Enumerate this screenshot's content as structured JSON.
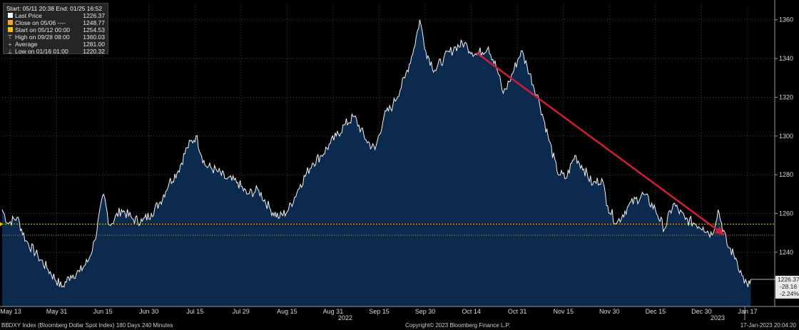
{
  "legend": {
    "header": "Start: 05/11 20:38 End: 01/25 16:52",
    "rows": [
      {
        "label": "Last Price",
        "value": "1226.37",
        "color": "#ffffff",
        "icon": "white-square-icon"
      },
      {
        "label": "Close on 05/06 ----",
        "value": "1248.77",
        "color": "#f5a623",
        "icon": "orange-square-icon"
      },
      {
        "label": "Start on 05/12 00:00",
        "value": "1254.53",
        "color": "#f5c000",
        "icon": "yellow-square-icon"
      },
      {
        "label": "High on 09/28 08:00",
        "value": "1360.03",
        "color": "#cccccc",
        "icon": "high-marker-icon",
        "symbol": "⊤"
      },
      {
        "label": "Average",
        "value": "1281.00",
        "color": "#cccccc",
        "icon": "average-marker-icon",
        "symbol": "+"
      },
      {
        "label": "Low on 01/16 01:00",
        "value": "1220.32",
        "color": "#cccccc",
        "icon": "low-marker-icon",
        "symbol": "⊥"
      }
    ]
  },
  "value_box": {
    "last": "1226.37",
    "change": "-28.16",
    "pct": "-2.24%"
  },
  "footer": {
    "left": "BBDXY Index (Bloomberg Dollar Spot Index) 180 Days 240 Minutes",
    "center": "Copyright© 2023 Bloomberg Finance L.P.",
    "right": "17-Jan-2023 20:04:20"
  },
  "colors": {
    "area": "#0c2a4e",
    "line": "#f2f2f2",
    "trend": "#d21e35",
    "start_line": "#f5c000",
    "close_line": "#f5a623"
  },
  "chart_data": {
    "type": "area",
    "y_ticks": [
      1240,
      1260,
      1280,
      1300,
      1320,
      1340,
      1360
    ],
    "ylim": [
      1212,
      1368
    ],
    "x_tick_labels": [
      "May 13",
      "May 31",
      "Jun 15",
      "Jun 30",
      "Jul 15",
      "Jul 29",
      "Aug 15",
      "Aug 31",
      "Sep 15",
      "Sep 30",
      "Oct 14",
      "Oct 31",
      "Nov 15",
      "Nov 30",
      "Dec 15",
      "Dec 30",
      "Jan 17"
    ],
    "x_year_labels": [
      "2022",
      "2023"
    ],
    "x_start": "2022-05-11",
    "x_end": "2023-01-25",
    "series": [
      {
        "name": "Last Price",
        "points": [
          [
            "2022-05-11",
            1262
          ],
          [
            "2022-05-13",
            1255
          ],
          [
            "2022-05-16",
            1258
          ],
          [
            "2022-05-19",
            1246
          ],
          [
            "2022-05-23",
            1238
          ],
          [
            "2022-05-26",
            1232
          ],
          [
            "2022-05-31",
            1222
          ],
          [
            "2022-06-03",
            1228
          ],
          [
            "2022-06-06",
            1230
          ],
          [
            "2022-06-09",
            1236
          ],
          [
            "2022-06-11",
            1246
          ],
          [
            "2022-06-14",
            1270
          ],
          [
            "2022-06-16",
            1254
          ],
          [
            "2022-06-20",
            1262
          ],
          [
            "2022-06-24",
            1257
          ],
          [
            "2022-06-27",
            1256
          ],
          [
            "2022-06-30",
            1260
          ],
          [
            "2022-07-03",
            1266
          ],
          [
            "2022-07-06",
            1276
          ],
          [
            "2022-07-09",
            1282
          ],
          [
            "2022-07-12",
            1294
          ],
          [
            "2022-07-15",
            1300
          ],
          [
            "2022-07-18",
            1285
          ],
          [
            "2022-07-22",
            1282
          ],
          [
            "2022-07-25",
            1278
          ],
          [
            "2022-07-29",
            1276
          ],
          [
            "2022-08-01",
            1270
          ],
          [
            "2022-08-05",
            1272
          ],
          [
            "2022-08-09",
            1262
          ],
          [
            "2022-08-12",
            1258
          ],
          [
            "2022-08-15",
            1262
          ],
          [
            "2022-08-19",
            1275
          ],
          [
            "2022-08-23",
            1286
          ],
          [
            "2022-08-26",
            1290
          ],
          [
            "2022-08-29",
            1296
          ],
          [
            "2022-08-31",
            1300
          ],
          [
            "2022-09-03",
            1306
          ],
          [
            "2022-09-06",
            1310
          ],
          [
            "2022-09-10",
            1298
          ],
          [
            "2022-09-13",
            1293
          ],
          [
            "2022-09-16",
            1310
          ],
          [
            "2022-09-19",
            1316
          ],
          [
            "2022-09-23",
            1330
          ],
          [
            "2022-09-26",
            1345
          ],
          [
            "2022-09-28",
            1360
          ],
          [
            "2022-09-30",
            1344
          ],
          [
            "2022-10-03",
            1334
          ],
          [
            "2022-10-06",
            1340
          ],
          [
            "2022-10-10",
            1346
          ],
          [
            "2022-10-13",
            1348
          ],
          [
            "2022-10-14",
            1346
          ],
          [
            "2022-10-17",
            1342
          ],
          [
            "2022-10-21",
            1346
          ],
          [
            "2022-10-24",
            1334
          ],
          [
            "2022-10-26",
            1322
          ],
          [
            "2022-10-28",
            1328
          ],
          [
            "2022-11-01",
            1344
          ],
          [
            "2022-11-03",
            1336
          ],
          [
            "2022-11-07",
            1318
          ],
          [
            "2022-11-10",
            1300
          ],
          [
            "2022-11-13",
            1282
          ],
          [
            "2022-11-16",
            1278
          ],
          [
            "2022-11-19",
            1290
          ],
          [
            "2022-11-22",
            1283
          ],
          [
            "2022-11-25",
            1275
          ],
          [
            "2022-11-28",
            1278
          ],
          [
            "2022-11-30",
            1264
          ],
          [
            "2022-12-03",
            1255
          ],
          [
            "2022-12-07",
            1264
          ],
          [
            "2022-12-12",
            1270
          ],
          [
            "2022-12-16",
            1262
          ],
          [
            "2022-12-19",
            1252
          ],
          [
            "2022-12-22",
            1265
          ],
          [
            "2022-12-26",
            1257
          ],
          [
            "2022-12-29",
            1255
          ],
          [
            "2023-01-01",
            1253
          ],
          [
            "2023-01-04",
            1249
          ],
          [
            "2023-01-06",
            1262
          ],
          [
            "2023-01-09",
            1244
          ],
          [
            "2023-01-12",
            1237
          ],
          [
            "2023-01-14",
            1228
          ],
          [
            "2023-01-16",
            1222
          ],
          [
            "2023-01-17",
            1226
          ]
        ]
      }
    ],
    "horizontal_lines": [
      {
        "label": "Start on 05/12 00:00",
        "value": 1254.53
      },
      {
        "label": "Close on 05/06",
        "value": 1248.77
      }
    ],
    "trend_arrow": {
      "from": [
        "2022-10-17",
        1343
      ],
      "to": [
        "2023-01-08",
        1249
      ]
    },
    "grid": true
  }
}
